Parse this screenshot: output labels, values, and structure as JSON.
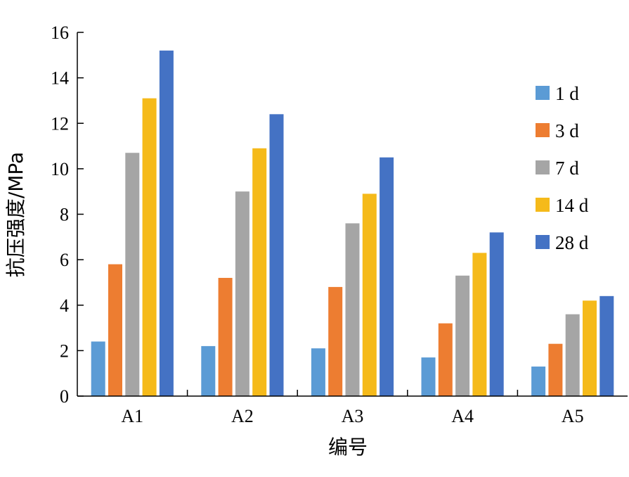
{
  "chart_data": {
    "type": "bar",
    "title": "",
    "xlabel": "编号",
    "ylabel": "抗压强度/MPa",
    "categories": [
      "A1",
      "A2",
      "A3",
      "A4",
      "A5"
    ],
    "ylim": [
      0,
      16
    ],
    "yticks": [
      "0",
      "2",
      "4",
      "6",
      "8",
      "10",
      "12",
      "14",
      "16"
    ],
    "legend_position": "right",
    "grid": false,
    "series": [
      {
        "name": "1 d",
        "color": "#5B9BD5",
        "values": [
          2.4,
          2.2,
          2.1,
          1.7,
          1.3
        ]
      },
      {
        "name": "3 d",
        "color": "#ED7D31",
        "values": [
          5.8,
          5.2,
          4.8,
          3.2,
          2.3
        ]
      },
      {
        "name": "7 d",
        "color": "#A5A5A5",
        "values": [
          10.7,
          9.0,
          7.6,
          5.3,
          3.6
        ]
      },
      {
        "name": "14 d",
        "color": "#F5BA1A",
        "values": [
          13.1,
          10.9,
          8.9,
          6.3,
          4.2
        ]
      },
      {
        "name": "28 d",
        "color": "#4472C4",
        "values": [
          15.2,
          12.4,
          10.5,
          7.2,
          4.4
        ]
      }
    ]
  }
}
